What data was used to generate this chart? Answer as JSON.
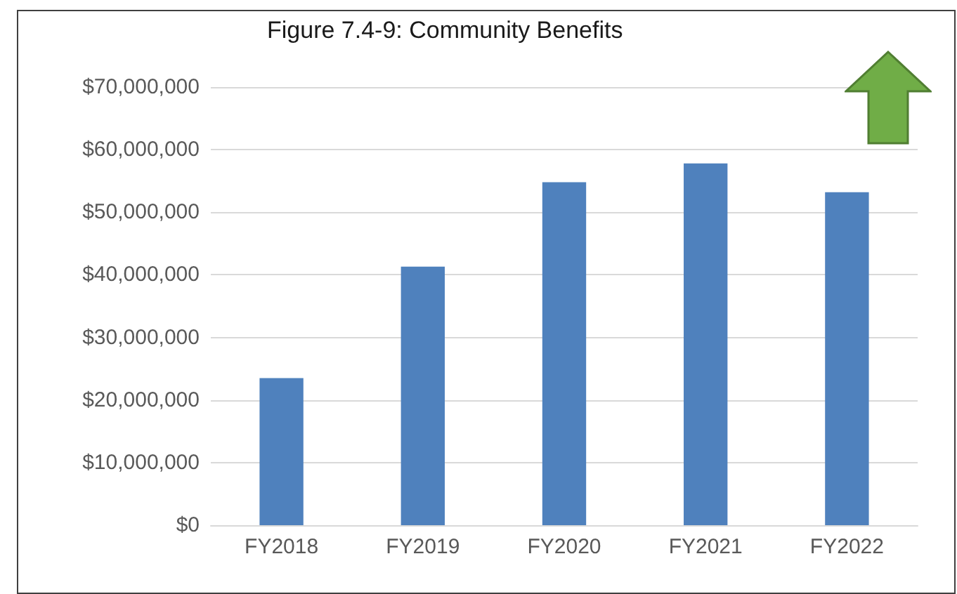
{
  "chart_data": {
    "type": "bar",
    "title": "Figure 7.4-9: Community Benefits",
    "categories": [
      "FY2018",
      "FY2019",
      "FY2020",
      "FY2021",
      "FY2022"
    ],
    "values": [
      23500000,
      41300000,
      54800000,
      57800000,
      53200000
    ],
    "color": "#4f81bd",
    "ylim": [
      0,
      70000000
    ],
    "yticks": [
      {
        "value": 0,
        "label": "$0"
      },
      {
        "value": 10000000,
        "label": "$10,000,000"
      },
      {
        "value": 20000000,
        "label": "$20,000,000"
      },
      {
        "value": 30000000,
        "label": "$30,000,000"
      },
      {
        "value": 40000000,
        "label": "$40,000,000"
      },
      {
        "value": 50000000,
        "label": "$50,000,000"
      },
      {
        "value": 60000000,
        "label": "$60,000,000"
      },
      {
        "value": 70000000,
        "label": "$70,000,000"
      }
    ],
    "grid": true
  }
}
